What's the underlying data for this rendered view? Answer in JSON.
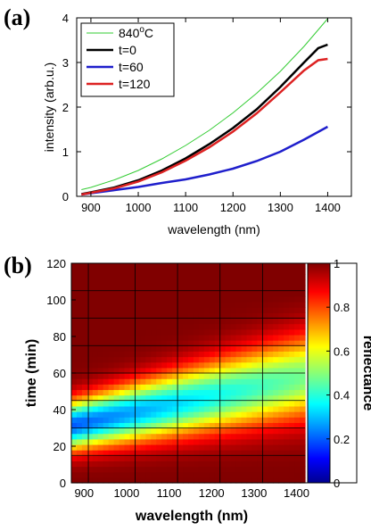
{
  "chart_data": [
    {
      "type": "line",
      "panel_label": "(a)",
      "xlabel": "wavelength  (nm)",
      "ylabel": "intensity    (arb.u.)",
      "xlim": [
        870,
        1450
      ],
      "ylim": [
        0,
        4
      ],
      "xticks": [
        900,
        1000,
        1100,
        1200,
        1300,
        1400
      ],
      "yticks": [
        0,
        1,
        2,
        3,
        4
      ],
      "grid": false,
      "legend_position": "top-left",
      "series": [
        {
          "name": "840",
          "name_sup": "o",
          "name_suffix": "C",
          "color": "#33cc33",
          "width": 1,
          "x": [
            880,
            900,
            950,
            1000,
            1050,
            1100,
            1150,
            1200,
            1250,
            1300,
            1350,
            1400
          ],
          "y": [
            0.15,
            0.2,
            0.37,
            0.58,
            0.84,
            1.14,
            1.48,
            1.87,
            2.31,
            2.8,
            3.36,
            3.98
          ]
        },
        {
          "name": "t=0",
          "color": "#000000",
          "width": 2.5,
          "x": [
            880,
            900,
            950,
            1000,
            1050,
            1100,
            1150,
            1200,
            1250,
            1300,
            1350,
            1380,
            1400
          ],
          "y": [
            0.05,
            0.09,
            0.2,
            0.36,
            0.58,
            0.85,
            1.17,
            1.53,
            1.95,
            2.45,
            3.0,
            3.32,
            3.4
          ]
        },
        {
          "name": "t=60",
          "color": "#1f1fcc",
          "width": 2.5,
          "x": [
            880,
            900,
            950,
            1000,
            1050,
            1100,
            1150,
            1200,
            1250,
            1300,
            1350,
            1400
          ],
          "y": [
            0.04,
            0.07,
            0.14,
            0.21,
            0.3,
            0.38,
            0.49,
            0.62,
            0.79,
            1.0,
            1.27,
            1.56
          ]
        },
        {
          "name": "t=120",
          "color": "#dd2222",
          "width": 2.5,
          "x": [
            880,
            900,
            950,
            1000,
            1050,
            1100,
            1150,
            1200,
            1250,
            1300,
            1350,
            1380,
            1400
          ],
          "y": [
            0.04,
            0.08,
            0.18,
            0.33,
            0.54,
            0.8,
            1.1,
            1.45,
            1.86,
            2.33,
            2.82,
            3.05,
            3.08
          ]
        }
      ]
    },
    {
      "type": "heatmap",
      "panel_label": "(b)",
      "xlabel": "wavelength  (nm)",
      "ylabel": "time  (min)",
      "xlim": [
        870,
        1420
      ],
      "ylim": [
        0,
        120
      ],
      "xticks": [
        900,
        1000,
        1100,
        1200,
        1300,
        1400
      ],
      "yticks": [
        0,
        20,
        40,
        60,
        80,
        100,
        120
      ],
      "grid": true,
      "grid_x": [
        910,
        1020,
        1120,
        1220,
        1320
      ],
      "grid_y": [
        15,
        30,
        45,
        60,
        75,
        90,
        105
      ],
      "colormap": "jet",
      "colorbar_label": "reflectance",
      "colorbar_range": [
        0,
        1
      ],
      "colorbar_ticks": [
        0,
        0.2,
        0.4,
        0.6,
        0.8,
        1
      ],
      "minimum_band": {
        "x": [
          880,
          1420
        ],
        "t": [
          32,
          58
        ],
        "width_min": 22,
        "min_value": 0.2
      }
    }
  ]
}
